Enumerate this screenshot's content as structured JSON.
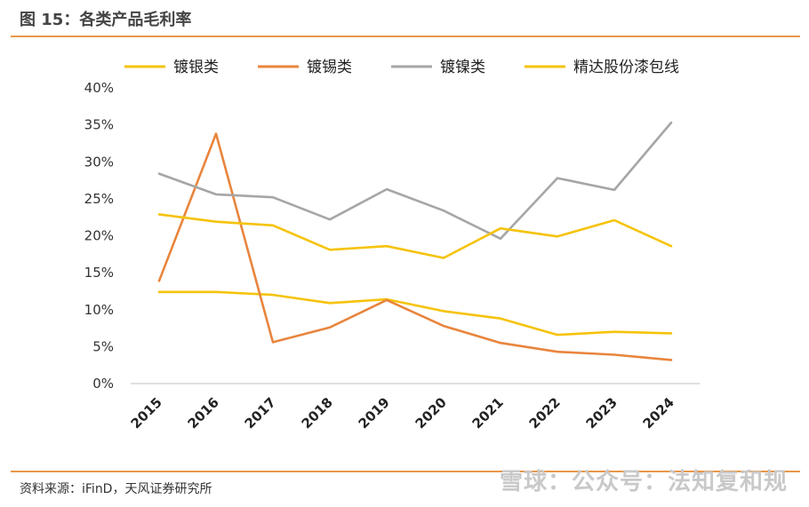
{
  "figure_title": "图 15：各类产品毛利率",
  "source": "资料来源：iFinD，天风证券研究所",
  "watermark": "雪球：公众号：法知复和规",
  "chart_data": {
    "type": "line",
    "title": "",
    "xlabel": "",
    "ylabel": "",
    "x": [
      "2015",
      "2016",
      "2017",
      "2018",
      "2019",
      "2020",
      "2021",
      "2022",
      "2023",
      "2024"
    ],
    "ylim": [
      0,
      40
    ],
    "yticks": [
      "0%",
      "5%",
      "10%",
      "15%",
      "20%",
      "25%",
      "30%",
      "35%",
      "40%"
    ],
    "grid": false,
    "legend_position": "top",
    "series": [
      {
        "name": "镀银类",
        "color": "#f5c30a",
        "values": [
          12.4,
          12.4,
          12.0,
          10.9,
          11.4,
          9.8,
          8.8,
          6.6,
          7.0,
          6.8
        ]
      },
      {
        "name": "镀锡类",
        "color": "#e8853d",
        "values": [
          13.9,
          33.8,
          5.6,
          7.6,
          11.3,
          7.8,
          5.5,
          4.3,
          3.9,
          3.2
        ]
      },
      {
        "name": "镀镍类",
        "color": "#a6a6a6",
        "values": [
          28.4,
          25.6,
          25.2,
          22.2,
          26.3,
          23.4,
          19.6,
          27.8,
          26.2,
          35.3
        ]
      },
      {
        "name": "精达股份漆包线",
        "color": "#f5c30a",
        "values": [
          22.9,
          21.9,
          21.4,
          18.1,
          18.6,
          17.0,
          21.0,
          19.9,
          22.1,
          18.6
        ]
      }
    ]
  }
}
